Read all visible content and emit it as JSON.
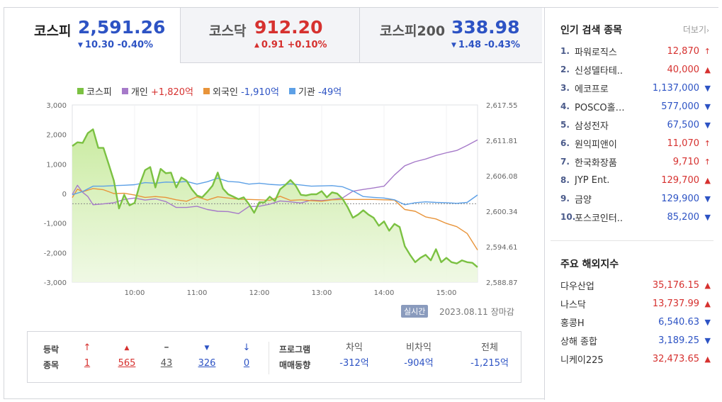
{
  "tabs": [
    {
      "name": "코스피",
      "value": "2,591.26",
      "dir": "down",
      "arrow": "▼",
      "change": "10.30 -0.40%"
    },
    {
      "name": "코스닥",
      "value": "912.20",
      "dir": "up",
      "arrow": "▲",
      "change": "0.91 +0.10%"
    },
    {
      "name": "코스피200",
      "value": "338.98",
      "dir": "down",
      "arrow": "▼",
      "change": "1.48 -0.43%"
    }
  ],
  "legend": [
    {
      "name": "코스피",
      "value": "",
      "color": "#7bc142",
      "value_dir": ""
    },
    {
      "name": "개인",
      "value": "+1,820억",
      "color": "#a67ac9",
      "value_dir": "pos"
    },
    {
      "name": "외국인",
      "value": "-1,910억",
      "color": "#e8943a",
      "value_dir": "neg"
    },
    {
      "name": "기관",
      "value": "-49억",
      "color": "#5da0e6",
      "value_dir": "neg"
    }
  ],
  "chart_data": {
    "type": "line",
    "x_ticks": [
      "10:00",
      "11:00",
      "12:00",
      "13:00",
      "14:00",
      "15:00"
    ],
    "y_left_ticks": [
      "3,000",
      "2,000",
      "1,000",
      "0",
      "-1,000",
      "-2,000",
      "-3,000"
    ],
    "y_right_ticks": [
      "2,617.55",
      "2,611.81",
      "2,606.08",
      "2,600.34",
      "2,594.61",
      "2,588.87"
    ],
    "ylim_left": [
      -3000,
      3000
    ],
    "ylim_right": [
      2588.87,
      2617.55
    ],
    "x_range": [
      "09:00",
      "15:30"
    ],
    "series": [
      {
        "name": "코스피",
        "axis": "right",
        "color": "#7bc142",
        "points": [
          [
            "09:00",
            2610.9
          ],
          [
            "09:05",
            2611.5
          ],
          [
            "09:10",
            2611.4
          ],
          [
            "09:15",
            2613.0
          ],
          [
            "09:20",
            2613.6
          ],
          [
            "09:25",
            2610.6
          ],
          [
            "09:30",
            2610.6
          ],
          [
            "09:35",
            2608.0
          ],
          [
            "09:40",
            2605.3
          ],
          [
            "09:45",
            2600.8
          ],
          [
            "09:50",
            2603.0
          ],
          [
            "09:55",
            2601.3
          ],
          [
            "10:00",
            2601.7
          ],
          [
            "10:05",
            2604.7
          ],
          [
            "10:10",
            2607.0
          ],
          [
            "10:15",
            2607.5
          ],
          [
            "10:20",
            2604.2
          ],
          [
            "10:25",
            2607.2
          ],
          [
            "10:30",
            2606.5
          ],
          [
            "10:35",
            2606.6
          ],
          [
            "10:40",
            2604.2
          ],
          [
            "10:45",
            2605.8
          ],
          [
            "10:50",
            2605.3
          ],
          [
            "10:55",
            2603.9
          ],
          [
            "11:00",
            2602.9
          ],
          [
            "11:05",
            2602.6
          ],
          [
            "11:10",
            2603.5
          ],
          [
            "11:15",
            2604.5
          ],
          [
            "11:20",
            2606.6
          ],
          [
            "11:25",
            2604.0
          ],
          [
            "11:30",
            2603.1
          ],
          [
            "11:35",
            2602.7
          ],
          [
            "11:40",
            2602.3
          ],
          [
            "11:45",
            2602.6
          ],
          [
            "11:50",
            2601.5
          ],
          [
            "11:55",
            2600.1
          ],
          [
            "12:00",
            2601.8
          ],
          [
            "12:05",
            2601.8
          ],
          [
            "12:10",
            2602.7
          ],
          [
            "12:15",
            2602.0
          ],
          [
            "12:20",
            2603.9
          ],
          [
            "12:25",
            2604.6
          ],
          [
            "12:30",
            2605.4
          ],
          [
            "12:35",
            2604.5
          ],
          [
            "12:40",
            2603.0
          ],
          [
            "12:45",
            2602.9
          ],
          [
            "12:50",
            2603.1
          ],
          [
            "12:55",
            2603.1
          ],
          [
            "13:00",
            2603.6
          ],
          [
            "13:05",
            2602.6
          ],
          [
            "13:10",
            2603.4
          ],
          [
            "13:15",
            2603.2
          ],
          [
            "13:20",
            2602.4
          ],
          [
            "13:25",
            2601.0
          ],
          [
            "13:30",
            2599.3
          ],
          [
            "13:35",
            2599.8
          ],
          [
            "13:40",
            2600.5
          ],
          [
            "13:45",
            2599.8
          ],
          [
            "13:50",
            2599.3
          ],
          [
            "13:55",
            2598.0
          ],
          [
            "14:00",
            2598.7
          ],
          [
            "14:05",
            2597.2
          ],
          [
            "14:10",
            2598.3
          ],
          [
            "14:15",
            2597.8
          ],
          [
            "14:20",
            2594.7
          ],
          [
            "14:25",
            2593.3
          ],
          [
            "14:30",
            2592.1
          ],
          [
            "14:35",
            2592.8
          ],
          [
            "14:40",
            2593.3
          ],
          [
            "14:45",
            2592.4
          ],
          [
            "14:50",
            2594.2
          ],
          [
            "14:55",
            2592.1
          ],
          [
            "15:00",
            2592.8
          ],
          [
            "15:05",
            2592.1
          ],
          [
            "15:10",
            2591.9
          ],
          [
            "15:15",
            2592.4
          ],
          [
            "15:20",
            2592.1
          ],
          [
            "15:25",
            2592.0
          ],
          [
            "15:30",
            2591.3
          ]
        ]
      },
      {
        "name": "개인",
        "axis": "left",
        "color": "#a67ac9",
        "points": [
          [
            "09:00",
            -30
          ],
          [
            "09:05",
            280
          ],
          [
            "09:10",
            40
          ],
          [
            "09:15",
            -100
          ],
          [
            "09:20",
            -380
          ],
          [
            "09:30",
            -350
          ],
          [
            "09:40",
            -310
          ],
          [
            "09:50",
            -200
          ],
          [
            "10:00",
            -150
          ],
          [
            "10:10",
            -220
          ],
          [
            "10:20",
            -180
          ],
          [
            "10:30",
            -270
          ],
          [
            "10:40",
            -470
          ],
          [
            "10:50",
            -470
          ],
          [
            "11:00",
            -430
          ],
          [
            "11:10",
            -540
          ],
          [
            "11:20",
            -600
          ],
          [
            "11:30",
            -610
          ],
          [
            "11:40",
            -680
          ],
          [
            "11:50",
            -440
          ],
          [
            "12:00",
            -430
          ],
          [
            "12:10",
            -360
          ],
          [
            "12:20",
            -250
          ],
          [
            "12:30",
            -280
          ],
          [
            "12:40",
            -320
          ],
          [
            "12:50",
            -220
          ],
          [
            "13:00",
            -240
          ],
          [
            "13:10",
            -200
          ],
          [
            "13:20",
            -150
          ],
          [
            "13:30",
            80
          ],
          [
            "13:40",
            140
          ],
          [
            "13:50",
            190
          ],
          [
            "14:00",
            250
          ],
          [
            "14:10",
            630
          ],
          [
            "14:20",
            940
          ],
          [
            "14:30",
            1080
          ],
          [
            "14:40",
            1170
          ],
          [
            "14:50",
            1290
          ],
          [
            "15:00",
            1380
          ],
          [
            "15:10",
            1460
          ],
          [
            "15:20",
            1630
          ],
          [
            "15:30",
            1820
          ]
        ]
      },
      {
        "name": "외국인",
        "axis": "left",
        "color": "#e8943a",
        "points": [
          [
            "09:00",
            -140
          ],
          [
            "09:05",
            150
          ],
          [
            "09:10",
            60
          ],
          [
            "09:20",
            170
          ],
          [
            "09:30",
            130
          ],
          [
            "09:40",
            0
          ],
          [
            "09:50",
            10
          ],
          [
            "10:00",
            -50
          ],
          [
            "10:10",
            -130
          ],
          [
            "10:20",
            -100
          ],
          [
            "10:30",
            -130
          ],
          [
            "10:40",
            -210
          ],
          [
            "10:50",
            -260
          ],
          [
            "11:00",
            -110
          ],
          [
            "11:10",
            -220
          ],
          [
            "11:20",
            -110
          ],
          [
            "11:30",
            -150
          ],
          [
            "11:40",
            -190
          ],
          [
            "11:50",
            -200
          ],
          [
            "12:00",
            -210
          ],
          [
            "12:10",
            -230
          ],
          [
            "12:20",
            -90
          ],
          [
            "12:30",
            -230
          ],
          [
            "12:40",
            -210
          ],
          [
            "12:50",
            -240
          ],
          [
            "13:00",
            -260
          ],
          [
            "13:10",
            -210
          ],
          [
            "13:20",
            -200
          ],
          [
            "13:30",
            -200
          ],
          [
            "13:40",
            -200
          ],
          [
            "13:50",
            -200
          ],
          [
            "14:00",
            -210
          ],
          [
            "14:10",
            -220
          ],
          [
            "14:20",
            -540
          ],
          [
            "14:30",
            -600
          ],
          [
            "14:40",
            -790
          ],
          [
            "14:50",
            -860
          ],
          [
            "15:00",
            -1010
          ],
          [
            "15:10",
            -1120
          ],
          [
            "15:20",
            -1350
          ],
          [
            "15:30",
            -1910
          ]
        ]
      },
      {
        "name": "기관",
        "axis": "left",
        "color": "#5da0e6",
        "points": [
          [
            "09:00",
            -40
          ],
          [
            "09:10",
            70
          ],
          [
            "09:20",
            250
          ],
          [
            "09:30",
            250
          ],
          [
            "09:40",
            270
          ],
          [
            "09:50",
            280
          ],
          [
            "10:00",
            300
          ],
          [
            "10:10",
            370
          ],
          [
            "10:20",
            350
          ],
          [
            "10:30",
            390
          ],
          [
            "10:40",
            380
          ],
          [
            "10:50",
            410
          ],
          [
            "11:00",
            320
          ],
          [
            "11:10",
            400
          ],
          [
            "11:20",
            520
          ],
          [
            "11:30",
            410
          ],
          [
            "11:40",
            390
          ],
          [
            "11:50",
            320
          ],
          [
            "12:00",
            350
          ],
          [
            "12:10",
            310
          ],
          [
            "12:20",
            290
          ],
          [
            "12:30",
            330
          ],
          [
            "12:40",
            290
          ],
          [
            "12:50",
            250
          ],
          [
            "13:00",
            260
          ],
          [
            "13:10",
            270
          ],
          [
            "13:20",
            230
          ],
          [
            "13:30",
            90
          ],
          [
            "13:40",
            -100
          ],
          [
            "13:50",
            -130
          ],
          [
            "14:00",
            -150
          ],
          [
            "14:10",
            -210
          ],
          [
            "14:20",
            -380
          ],
          [
            "14:30",
            -310
          ],
          [
            "14:40",
            -280
          ],
          [
            "14:50",
            -300
          ],
          [
            "15:00",
            -310
          ],
          [
            "15:10",
            -330
          ],
          [
            "15:20",
            -300
          ],
          [
            "15:30",
            -49
          ]
        ]
      }
    ],
    "reference_line": {
      "axis": "right",
      "value": 2601.56,
      "style": "dashed"
    }
  },
  "realtime": {
    "badge": "실시간",
    "date": "2023.08.11",
    "status": "장마감"
  },
  "stats": {
    "label_line1": "등락",
    "label_line2": "종목",
    "items": [
      {
        "symbol": "↑",
        "count": "1",
        "dir": "up"
      },
      {
        "symbol": "▲",
        "count": "565",
        "dir": "up"
      },
      {
        "symbol": "━",
        "count": "43",
        "dir": "flat"
      },
      {
        "symbol": "▼",
        "count": "326",
        "dir": "down"
      },
      {
        "symbol": "↓",
        "count": "0",
        "dir": "down"
      }
    ],
    "program_label_line1": "프로그램",
    "program_label_line2": "매매동향",
    "program": [
      {
        "header": "차익",
        "value": "-312억"
      },
      {
        "header": "비차익",
        "value": "-904억"
      },
      {
        "header": "전체",
        "value": "-1,215억"
      }
    ]
  },
  "popular": {
    "title": "인기 검색 종목",
    "more": "더보기",
    "items": [
      {
        "rank": "1.",
        "name": "파워로직스",
        "price": "12,870",
        "dir": "up",
        "arrow": "↑"
      },
      {
        "rank": "2.",
        "name": "신성델타테..",
        "price": "40,000",
        "dir": "up",
        "arrow": "▲"
      },
      {
        "rank": "3.",
        "name": "에코프로",
        "price": "1,137,000",
        "dir": "down",
        "arrow": "▼"
      },
      {
        "rank": "4.",
        "name": "POSCO홀…",
        "price": "577,000",
        "dir": "down",
        "arrow": "▼"
      },
      {
        "rank": "5.",
        "name": "삼성전자",
        "price": "67,500",
        "dir": "down",
        "arrow": "▼"
      },
      {
        "rank": "6.",
        "name": "원익피앤이",
        "price": "11,070",
        "dir": "up",
        "arrow": "↑"
      },
      {
        "rank": "7.",
        "name": "한국화장품",
        "price": "9,710",
        "dir": "up",
        "arrow": "↑"
      },
      {
        "rank": "8.",
        "name": "JYP Ent.",
        "price": "129,700",
        "dir": "up",
        "arrow": "▲"
      },
      {
        "rank": "9.",
        "name": "금양",
        "price": "129,900",
        "dir": "down",
        "arrow": "▼"
      },
      {
        "rank": "10.",
        "name": "포스코인터..",
        "price": "85,200",
        "dir": "down",
        "arrow": "▼"
      }
    ]
  },
  "overseas": {
    "title": "주요 해외지수",
    "items": [
      {
        "name": "다우산업",
        "price": "35,176.15",
        "dir": "up",
        "arrow": "▲"
      },
      {
        "name": "나스닥",
        "price": "13,737.99",
        "dir": "up",
        "arrow": "▲"
      },
      {
        "name": "홍콩H",
        "price": "6,540.63",
        "dir": "down",
        "arrow": "▼"
      },
      {
        "name": "상해 종합",
        "price": "3,189.25",
        "dir": "down",
        "arrow": "▼"
      },
      {
        "name": "니케이225",
        "price": "32,473.65",
        "dir": "up",
        "arrow": "▲"
      }
    ]
  }
}
